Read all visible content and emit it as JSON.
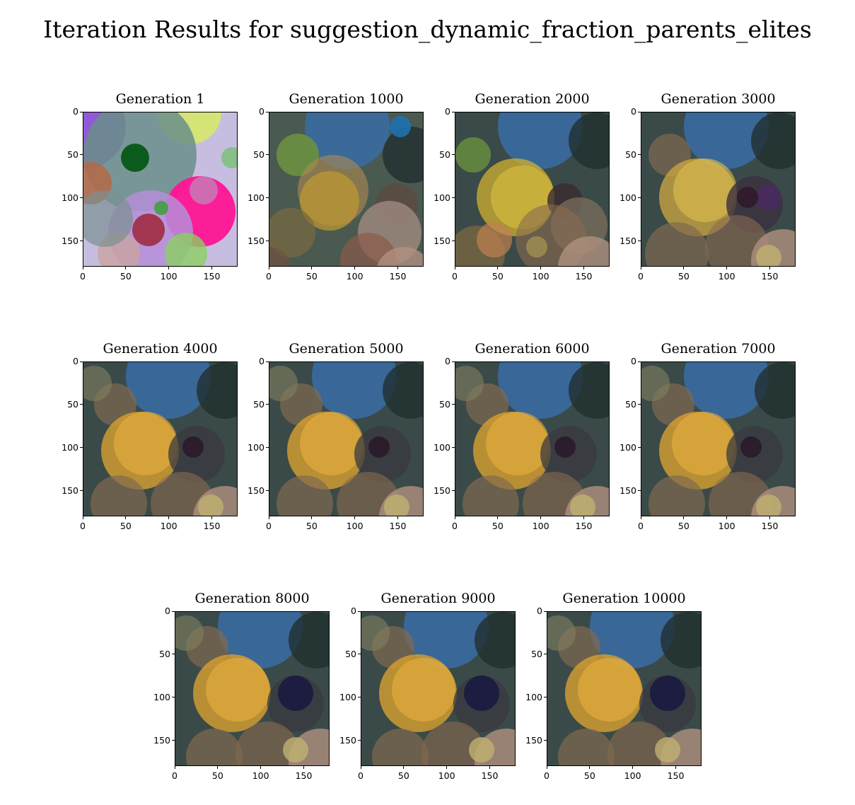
{
  "title": "Iteration Results for suggestion_dynamic_fraction_parents_elites",
  "panels": [
    {
      "title": "Generation 1",
      "palette": "early"
    },
    {
      "title": "Generation 1000",
      "palette": "g1000"
    },
    {
      "title": "Generation 2000",
      "palette": "g2000"
    },
    {
      "title": "Generation 3000",
      "palette": "g3000"
    },
    {
      "title": "Generation 4000",
      "palette": "late"
    },
    {
      "title": "Generation 5000",
      "palette": "late"
    },
    {
      "title": "Generation 6000",
      "palette": "late"
    },
    {
      "title": "Generation 7000",
      "palette": "late"
    },
    {
      "title": "Generation 8000",
      "palette": "final"
    },
    {
      "title": "Generation 9000",
      "palette": "final"
    },
    {
      "title": "Generation 10000",
      "palette": "final"
    }
  ],
  "axes": {
    "xticks": [
      "0",
      "50",
      "100",
      "150"
    ],
    "yticks": [
      "0",
      "50",
      "100",
      "150"
    ],
    "xmax": 180,
    "ymax": 180
  }
}
